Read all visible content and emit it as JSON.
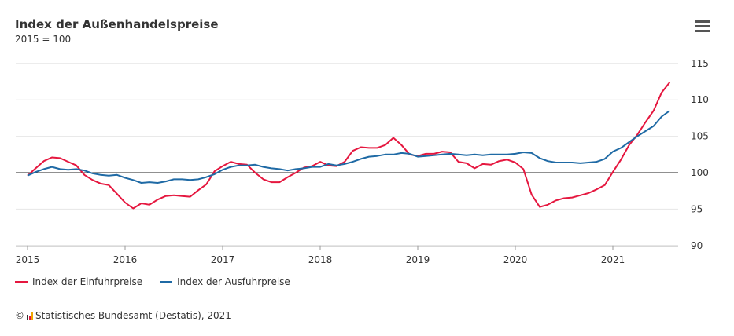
{
  "menu_icon": "hamburger-menu-icon",
  "chart_data": {
    "type": "line",
    "title": "Index der Außenhandelspreise",
    "subtitle": "2015 = 100",
    "x_start": "2015-01",
    "x_end": "2021-08",
    "x_frequency": "monthly",
    "x_ticks": [
      "2015",
      "2016",
      "2017",
      "2018",
      "2019",
      "2020",
      "2021"
    ],
    "y_ticks": [
      90,
      95,
      100,
      105,
      110,
      115
    ],
    "ylim": [
      90,
      115
    ],
    "reference_line": 100,
    "grid": true,
    "y_axis_side": "right",
    "legend_placement": "bottom-left",
    "series": [
      {
        "name": "Index der Einfuhrpreise",
        "color": "#e5173f",
        "values": [
          99.6,
          100.6,
          101.6,
          102.1,
          102.0,
          101.5,
          101.0,
          99.7,
          99.0,
          98.5,
          98.3,
          97.1,
          95.9,
          95.1,
          95.8,
          95.6,
          96.3,
          96.8,
          96.9,
          96.8,
          96.7,
          97.6,
          98.4,
          100.2,
          100.9,
          101.5,
          101.2,
          101.1,
          100.0,
          99.1,
          98.7,
          98.7,
          99.4,
          100.0,
          100.7,
          100.9,
          101.5,
          101.0,
          100.9,
          101.5,
          103.0,
          103.5,
          103.4,
          103.4,
          103.8,
          104.8,
          103.8,
          102.5,
          102.3,
          102.6,
          102.6,
          102.9,
          102.8,
          101.5,
          101.3,
          100.6,
          101.2,
          101.1,
          101.6,
          101.8,
          101.4,
          100.5,
          97.0,
          95.3,
          95.6,
          96.2,
          96.5,
          96.6,
          96.9,
          97.2,
          97.7,
          98.3,
          100.1,
          101.8,
          103.8,
          105.2,
          106.9,
          108.5,
          111.0,
          112.4
        ]
      },
      {
        "name": "Index der Ausfuhrpreise",
        "color": "#1f6aa5",
        "values": [
          99.6,
          100.1,
          100.5,
          100.8,
          100.5,
          100.4,
          100.5,
          100.3,
          99.9,
          99.7,
          99.6,
          99.7,
          99.3,
          99.0,
          98.6,
          98.7,
          98.6,
          98.8,
          99.1,
          99.1,
          99.0,
          99.1,
          99.4,
          99.8,
          100.4,
          100.8,
          101.0,
          101.0,
          101.1,
          100.8,
          100.6,
          100.5,
          100.3,
          100.5,
          100.6,
          100.8,
          100.8,
          101.2,
          101.0,
          101.2,
          101.5,
          101.9,
          102.2,
          102.3,
          102.5,
          102.5,
          102.7,
          102.6,
          102.2,
          102.3,
          102.4,
          102.5,
          102.6,
          102.5,
          102.4,
          102.5,
          102.4,
          102.5,
          102.5,
          102.5,
          102.6,
          102.8,
          102.7,
          102.0,
          101.6,
          101.4,
          101.4,
          101.4,
          101.3,
          101.4,
          101.5,
          101.9,
          102.9,
          103.4,
          104.2,
          105.0,
          105.7,
          106.4,
          107.7,
          108.5
        ]
      }
    ]
  },
  "credit": {
    "text": "Statistisches Bundesamt (Destatis), 2021",
    "copyright": "©"
  }
}
